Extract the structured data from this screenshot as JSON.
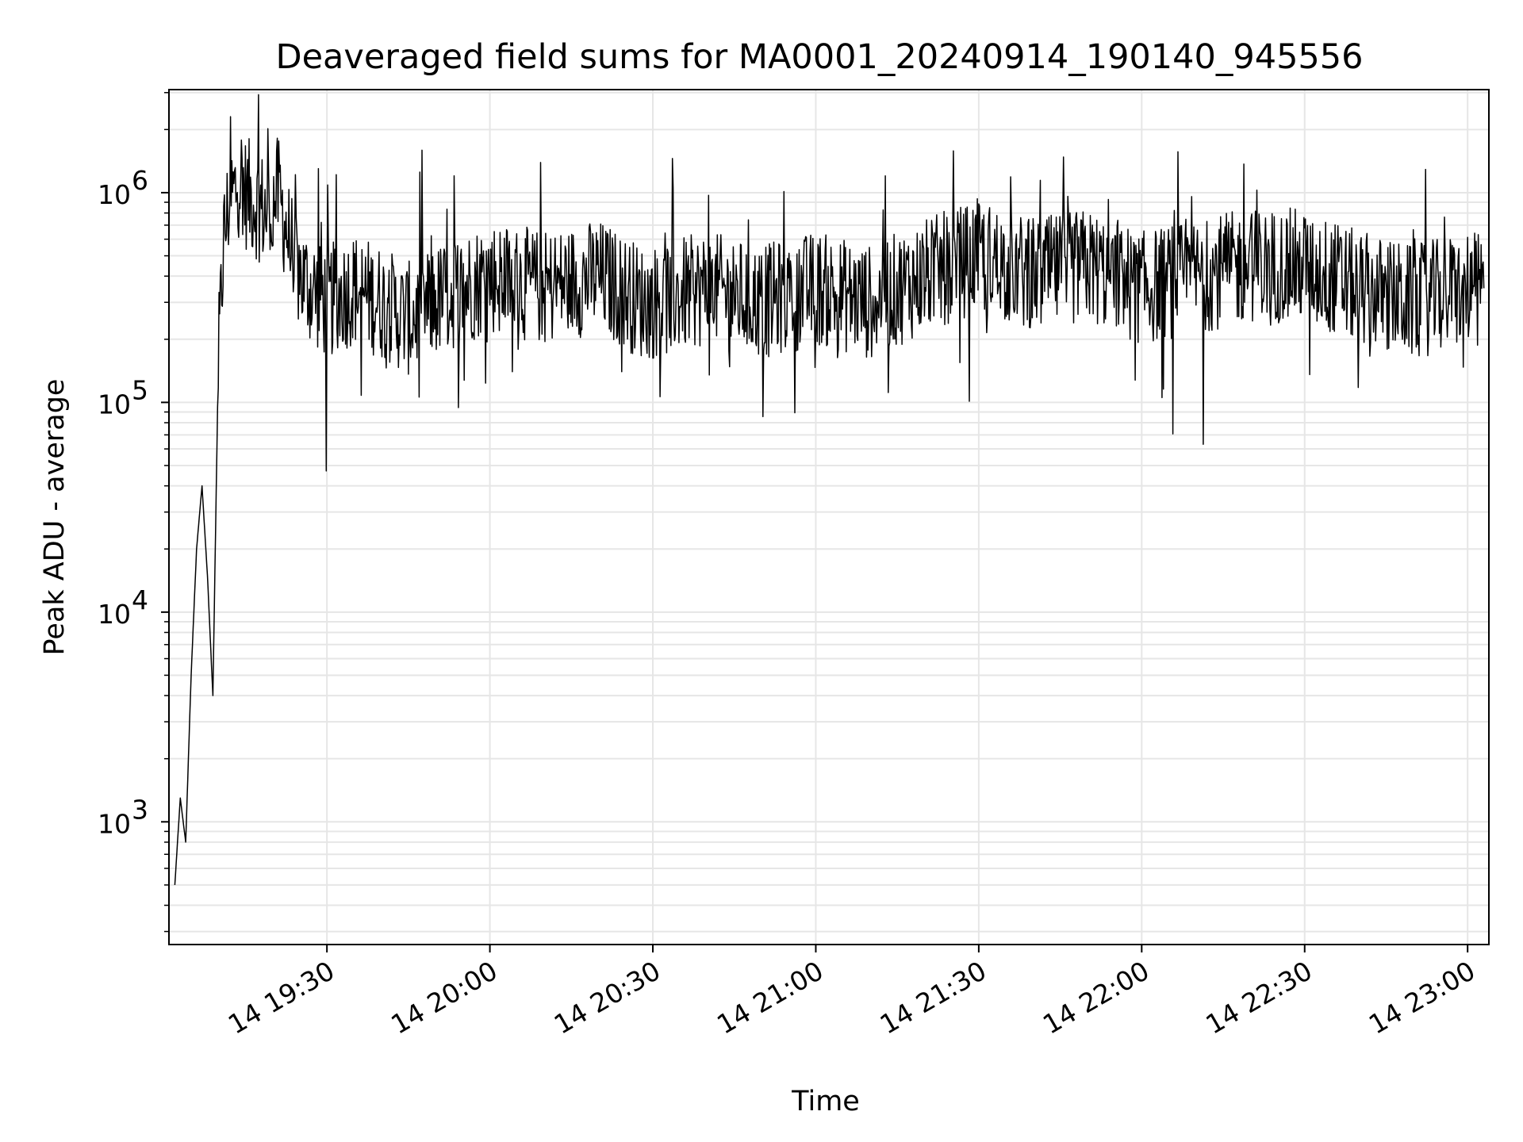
{
  "chart_data": {
    "type": "line",
    "title": "Deaveraged field sums for MA0001_20240914_190140_945556",
    "xlabel": "Time",
    "ylabel": "Peak ADU - average",
    "yscale": "log",
    "ylim": [
      260,
      3100000
    ],
    "xlim": [
      "2024-09-14 19:00:55",
      "2024-09-14 23:03:55"
    ],
    "x_ticks": [
      {
        "value": "2024-09-14 19:30",
        "label": "14 19:30"
      },
      {
        "value": "2024-09-14 20:00",
        "label": "14 20:00"
      },
      {
        "value": "2024-09-14 20:30",
        "label": "14 20:30"
      },
      {
        "value": "2024-09-14 21:00",
        "label": "14 21:00"
      },
      {
        "value": "2024-09-14 21:30",
        "label": "14 21:30"
      },
      {
        "value": "2024-09-14 22:00",
        "label": "14 22:00"
      },
      {
        "value": "2024-09-14 22:30",
        "label": "14 22:30"
      },
      {
        "value": "2024-09-14 23:00",
        "label": "14 23:00"
      }
    ],
    "y_ticks": [
      {
        "value": 1000,
        "label": "10",
        "exp": "3"
      },
      {
        "value": 10000,
        "label": "10",
        "exp": "4"
      },
      {
        "value": 100000,
        "label": "10",
        "exp": "5"
      },
      {
        "value": 1000000,
        "label": "10",
        "exp": "6"
      }
    ],
    "grid": true,
    "grid_minor_y": true,
    "line_color": "#000000",
    "grid_color": "#e6e6e6",
    "series": [
      {
        "x": [
          "2024-09-14 19:02",
          "2024-09-14 19:03",
          "2024-09-14 19:04",
          "2024-09-14 19:05",
          "2024-09-14 19:06",
          "2024-09-14 19:07",
          "2024-09-14 19:08",
          "2024-09-14 19:09",
          "2024-09-14 19:10",
          "2024-09-14 19:11",
          "2024-09-14 19:12",
          "2024-09-14 19:13",
          "2024-09-14 19:14",
          "2024-09-14 19:15",
          "2024-09-14 19:17",
          "2024-09-14 19:19",
          "2024-09-14 19:21",
          "2024-09-14 19:23",
          "2024-09-14 19:25",
          "2024-09-14 19:27",
          "2024-09-14 19:30",
          "2024-09-14 19:35",
          "2024-09-14 19:40",
          "2024-09-14 19:45",
          "2024-09-14 19:50",
          "2024-09-14 19:55",
          "2024-09-14 20:00",
          "2024-09-14 20:10",
          "2024-09-14 20:20",
          "2024-09-14 20:28",
          "2024-09-14 20:30",
          "2024-09-14 20:40",
          "2024-09-14 20:50",
          "2024-09-14 21:00",
          "2024-09-14 21:10",
          "2024-09-14 21:20",
          "2024-09-14 21:30",
          "2024-09-14 21:40",
          "2024-09-14 21:50",
          "2024-09-14 22:00",
          "2024-09-14 22:10",
          "2024-09-14 22:20",
          "2024-09-14 22:30",
          "2024-09-14 22:40",
          "2024-09-14 22:50",
          "2024-09-14 23:00",
          "2024-09-14 23:03"
        ],
        "values": [
          500,
          1300,
          800,
          5000,
          20000,
          40000,
          15000,
          4000,
          150000,
          600000,
          900000,
          1000000,
          1200000,
          1000000,
          900000,
          800000,
          1000000,
          600000,
          400000,
          350000,
          300000,
          350000,
          300000,
          250000,
          300000,
          350000,
          400000,
          350000,
          400000,
          300000,
          300000,
          350000,
          300000,
          350000,
          300000,
          400000,
          500000,
          400000,
          450000,
          350000,
          400000,
          450000,
          450000,
          350000,
          300000,
          350000,
          350000
        ]
      }
    ]
  }
}
